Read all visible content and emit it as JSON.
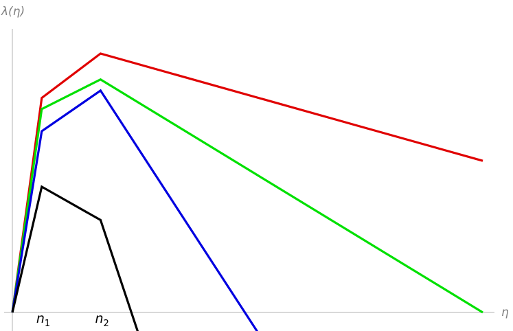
{
  "chart_data": {
    "type": "line",
    "xlabel": "η",
    "ylabel": "λ(η)",
    "x_ticks": [
      {
        "base": "n",
        "sub": "1",
        "x": 1
      },
      {
        "base": "n",
        "sub": "2",
        "x": 3
      }
    ],
    "xlim": [
      0,
      16
    ],
    "ylim": [
      -0.6,
      8.8
    ],
    "grid": false,
    "series": [
      {
        "color": "#e00000",
        "x": [
          0,
          1,
          3,
          16
        ],
        "y": [
          0,
          5.8,
          7.0,
          4.1
        ]
      },
      {
        "color": "#00e000",
        "x": [
          0,
          1,
          3,
          16
        ],
        "y": [
          0,
          5.5,
          6.3,
          0
        ]
      },
      {
        "color": "#0000e0",
        "x": [
          0,
          1,
          3,
          8.4
        ],
        "y": [
          0,
          4.9,
          6.0,
          -0.6
        ]
      },
      {
        "color": "#000000",
        "x": [
          0,
          1,
          3,
          4.3
        ],
        "y": [
          0,
          3.4,
          2.5,
          -0.6
        ]
      }
    ]
  }
}
